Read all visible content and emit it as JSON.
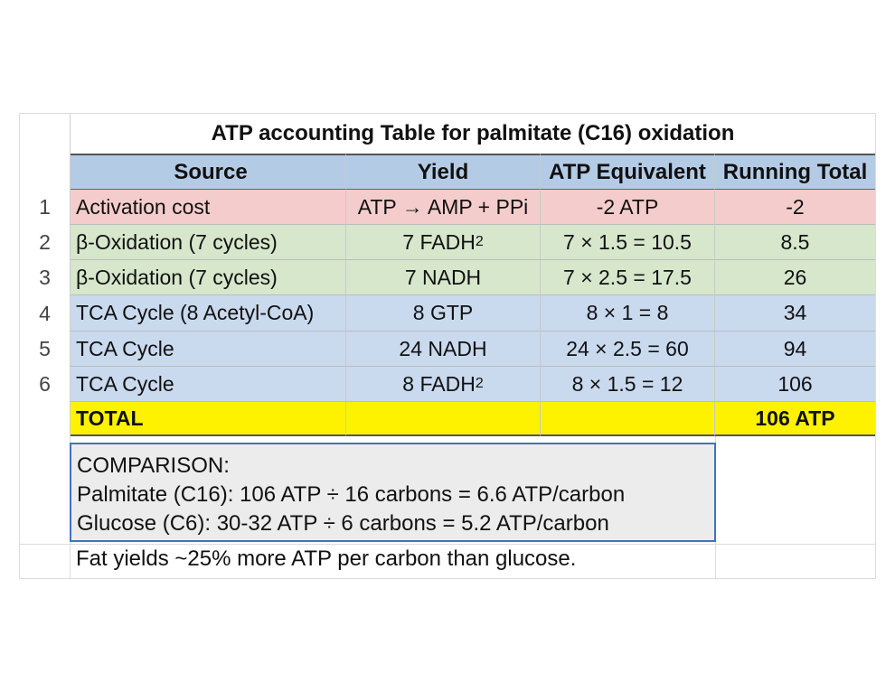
{
  "title": "ATP accounting Table for palmitate (C16) oxidation",
  "headers": {
    "source": "Source",
    "yield": "Yield",
    "atp_equivalent": "ATP Equivalent",
    "running_total": "Running Total"
  },
  "rows": [
    {
      "num": "1",
      "source": "Activation cost",
      "yield": "ATP → AMP + PPi",
      "yield_sub": "",
      "atp": "-2 ATP",
      "running": "-2",
      "color": "#f5cccc"
    },
    {
      "num": "2",
      "source": "β-Oxidation (7 cycles)",
      "yield": "7 FADH",
      "yield_sub": "2",
      "atp": "7 × 1.5 = 10.5",
      "running": "8.5",
      "color": "#d6e7cc"
    },
    {
      "num": "3",
      "source": "β-Oxidation (7 cycles)",
      "yield": "7 NADH",
      "yield_sub": "",
      "atp": "7 × 2.5 = 17.5",
      "running": "26",
      "color": "#d6e7cc"
    },
    {
      "num": "4",
      "source": "TCA Cycle (8 Acetyl-CoA)",
      "yield": "8 GTP",
      "yield_sub": "",
      "atp": "8 × 1 = 8",
      "running": "34",
      "color": "#c9d9ee"
    },
    {
      "num": "5",
      "source": "TCA Cycle",
      "yield": "24 NADH",
      "yield_sub": "",
      "atp": "24 × 2.5 = 60",
      "running": "94",
      "color": "#c9d9ee"
    },
    {
      "num": "6",
      "source": "TCA Cycle",
      "yield": "8 FADH",
      "yield_sub": "2",
      "atp": "8 × 1.5 = 12",
      "running": "106",
      "color": "#c9d9ee"
    }
  ],
  "total": {
    "label": "TOTAL",
    "value": "106 ATP",
    "color": "#fef200"
  },
  "comparison": {
    "heading": "COMPARISON:",
    "line1": "Palmitate (C16): 106 ATP ÷ 16 carbons = 6.6 ATP/carbon",
    "line2": "Glucose (C6): 30-32 ATP ÷ 6 carbons = 5.2 ATP/carbon"
  },
  "note": "Fat yields ~25% more ATP per carbon than glucose."
}
